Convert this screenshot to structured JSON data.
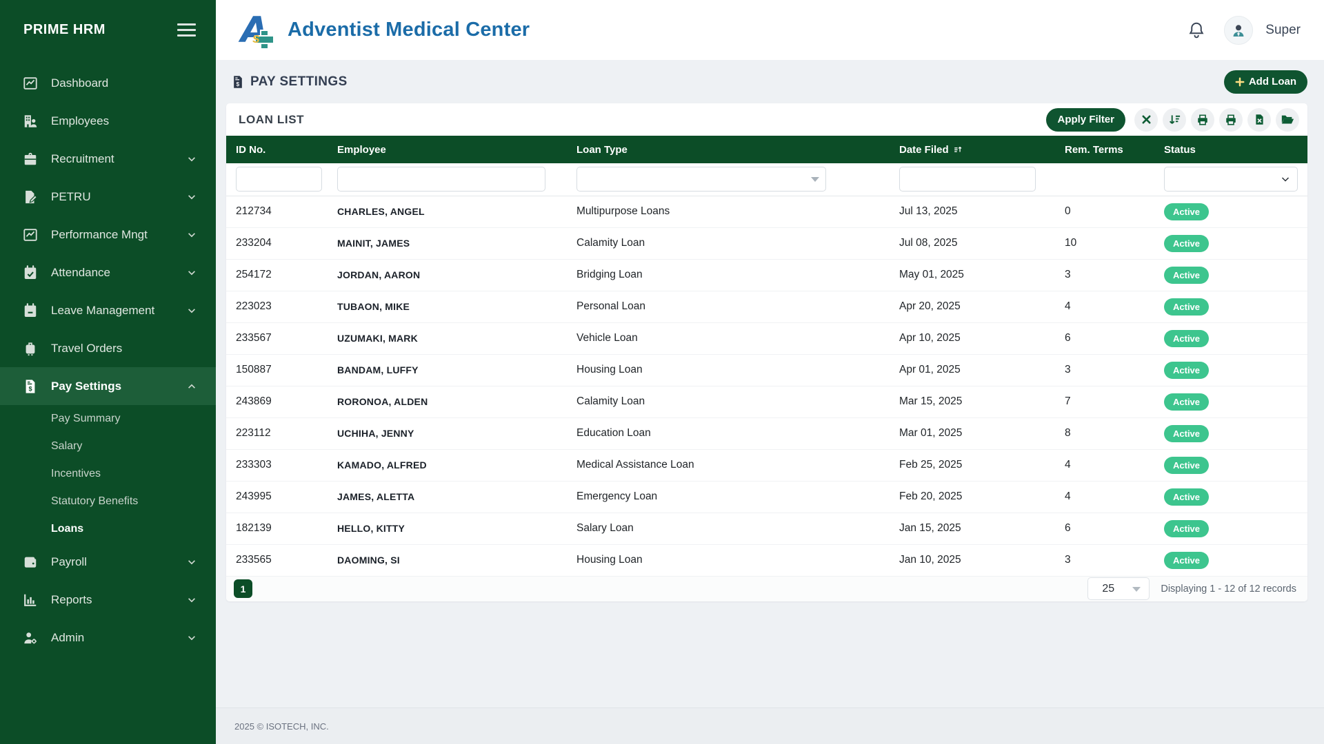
{
  "app": {
    "name": "PRIME HRM"
  },
  "header": {
    "title": "Adventist Medical Center",
    "user": "Super"
  },
  "sidebar": {
    "items": [
      {
        "label": "Dashboard",
        "icon": "chart-line",
        "chevron": ""
      },
      {
        "label": "Employees",
        "icon": "building-user",
        "chevron": ""
      },
      {
        "label": "Recruitment",
        "icon": "briefcase",
        "chevron": "down"
      },
      {
        "label": "PETRU",
        "icon": "file-pen",
        "chevron": "down"
      },
      {
        "label": "Performance Mngt",
        "icon": "chart-line",
        "chevron": "down"
      },
      {
        "label": "Attendance",
        "icon": "calendar-check",
        "chevron": "down"
      },
      {
        "label": "Leave Management",
        "icon": "calendar-minus",
        "chevron": "down"
      },
      {
        "label": "Travel Orders",
        "icon": "suitcase",
        "chevron": ""
      },
      {
        "label": "Pay Settings",
        "icon": "file-invoice-dollar",
        "chevron": "up",
        "active": true,
        "submenu": [
          {
            "label": "Pay Summary"
          },
          {
            "label": "Salary"
          },
          {
            "label": "Incentives"
          },
          {
            "label": "Statutory Benefits"
          },
          {
            "label": "Loans",
            "active": true
          }
        ]
      },
      {
        "label": "Payroll",
        "icon": "wallet",
        "chevron": "down"
      },
      {
        "label": "Reports",
        "icon": "bar-chart",
        "chevron": "down"
      },
      {
        "label": "Admin",
        "icon": "user-gear",
        "chevron": "down"
      }
    ]
  },
  "page": {
    "title": "PAY SETTINGS",
    "add_button_label": "Add Loan"
  },
  "panel": {
    "title": "LOAN LIST",
    "apply_filter_label": "Apply Filter",
    "tool_icons": [
      "clear-filter-icon",
      "sort-icon",
      "print-icon",
      "print-2-icon",
      "excel-export-icon",
      "folder-open-icon"
    ]
  },
  "table": {
    "columns": [
      "ID No.",
      "Employee",
      "Loan Type",
      "Date Filed",
      "Rem. Terms",
      "Status"
    ],
    "sorted_column": "Date Filed",
    "rows": [
      {
        "id_no": "212734",
        "employee": "CHARLES, ANGEL",
        "loan_type": "Multipurpose Loans",
        "date_filed": "Jul 13, 2025",
        "rem_terms": "0",
        "status": "Active"
      },
      {
        "id_no": "233204",
        "employee": "MAINIT, JAMES",
        "loan_type": "Calamity Loan",
        "date_filed": "Jul 08, 2025",
        "rem_terms": "10",
        "status": "Active"
      },
      {
        "id_no": "254172",
        "employee": "JORDAN, AARON",
        "loan_type": "Bridging Loan",
        "date_filed": "May 01, 2025",
        "rem_terms": "3",
        "status": "Active"
      },
      {
        "id_no": "223023",
        "employee": "TUBAON, MIKE",
        "loan_type": "Personal Loan",
        "date_filed": "Apr 20, 2025",
        "rem_terms": "4",
        "status": "Active"
      },
      {
        "id_no": "233567",
        "employee": "UZUMAKI, MARK",
        "loan_type": "Vehicle Loan",
        "date_filed": "Apr 10, 2025",
        "rem_terms": "6",
        "status": "Active"
      },
      {
        "id_no": "150887",
        "employee": "BANDAM, LUFFY",
        "loan_type": "Housing Loan",
        "date_filed": "Apr 01, 2025",
        "rem_terms": "3",
        "status": "Active"
      },
      {
        "id_no": "243869",
        "employee": "RORONOA, ALDEN",
        "loan_type": "Calamity Loan",
        "date_filed": "Mar 15, 2025",
        "rem_terms": "7",
        "status": "Active"
      },
      {
        "id_no": "223112",
        "employee": "UCHIHA, JENNY",
        "loan_type": "Education Loan",
        "date_filed": "Mar 01, 2025",
        "rem_terms": "8",
        "status": "Active"
      },
      {
        "id_no": "233303",
        "employee": "KAMADO, ALFRED",
        "loan_type": "Medical Assistance Loan",
        "date_filed": "Feb 25, 2025",
        "rem_terms": "4",
        "status": "Active"
      },
      {
        "id_no": "243995",
        "employee": "JAMES, ALETTA",
        "loan_type": "Emergency Loan",
        "date_filed": "Feb 20, 2025",
        "rem_terms": "4",
        "status": "Active"
      },
      {
        "id_no": "182139",
        "employee": "HELLO, KITTY",
        "loan_type": "Salary Loan",
        "date_filed": "Jan 15, 2025",
        "rem_terms": "6",
        "status": "Active"
      },
      {
        "id_no": "233565",
        "employee": "DAOMING, SI",
        "loan_type": "Housing Loan",
        "date_filed": "Jan 10, 2025",
        "rem_terms": "3",
        "status": "Active"
      }
    ],
    "status_badge_color": "#3dc58e"
  },
  "pagination": {
    "current_page": "1",
    "page_size": "25",
    "summary": "Displaying 1 - 12 of 12 records"
  },
  "footer": {
    "copyright": "2025 © ISOTECH, INC."
  },
  "colors": {
    "sidebar_green": "#0c4d27",
    "active_green": "#1d5e39",
    "button_green": "#0f5430",
    "badge_green": "#3dc58e",
    "title_blue": "#1b6ca8"
  }
}
